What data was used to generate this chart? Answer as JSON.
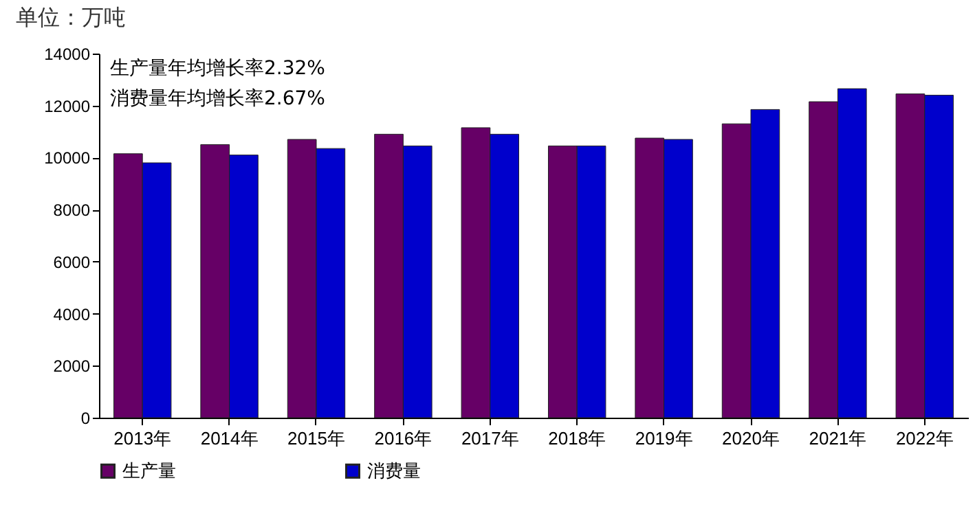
{
  "chart_data": {
    "type": "bar",
    "title": "单位：万吨",
    "categories": [
      "2013年",
      "2014年",
      "2015年",
      "2016年",
      "2017年",
      "2018年",
      "2019年",
      "2020年",
      "2021年",
      "2022年"
    ],
    "series": [
      {
        "name": "生产量",
        "color": "#660066",
        "values": [
          10150,
          10500,
          10700,
          10900,
          11150,
          10450,
          10750,
          11300,
          12150,
          12450
        ]
      },
      {
        "name": "消费量",
        "color": "#0000cc",
        "values": [
          9800,
          10100,
          10350,
          10450,
          10900,
          10450,
          10700,
          11850,
          12650,
          12400
        ]
      }
    ],
    "annotations": [
      "生产量年均增长率2.32%",
      "消费量年均增长率2.67%"
    ],
    "ylim": [
      0,
      14000
    ],
    "yticks": [
      0,
      2000,
      4000,
      6000,
      8000,
      10000,
      12000,
      14000
    ],
    "grid": false,
    "legend": "bottom"
  }
}
